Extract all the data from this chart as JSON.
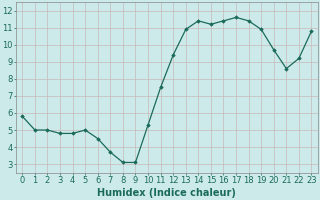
{
  "x": [
    0,
    1,
    2,
    3,
    4,
    5,
    6,
    7,
    8,
    9,
    10,
    11,
    12,
    13,
    14,
    15,
    16,
    17,
    18,
    19,
    20,
    21,
    22,
    23
  ],
  "y": [
    5.8,
    5.0,
    5.0,
    4.8,
    4.8,
    5.0,
    4.5,
    3.7,
    3.1,
    3.1,
    5.3,
    7.5,
    9.4,
    10.9,
    11.4,
    11.2,
    11.4,
    11.6,
    11.4,
    10.9,
    9.7,
    8.6,
    9.2,
    10.8
  ],
  "xlim": [
    -0.5,
    23.5
  ],
  "ylim": [
    2.5,
    12.5
  ],
  "yticks": [
    3,
    4,
    5,
    6,
    7,
    8,
    9,
    10,
    11,
    12
  ],
  "xticks": [
    0,
    1,
    2,
    3,
    4,
    5,
    6,
    7,
    8,
    9,
    10,
    11,
    12,
    13,
    14,
    15,
    16,
    17,
    18,
    19,
    20,
    21,
    22,
    23
  ],
  "xlabel": "Humidex (Indice chaleur)",
  "line_color": "#1a6b5a",
  "marker": "D",
  "marker_size": 1.8,
  "bg_color": "#cdeaea",
  "grid_color": "#e8e8e8",
  "xlabel_fontsize": 7,
  "tick_fontsize": 6,
  "line_width": 0.9
}
